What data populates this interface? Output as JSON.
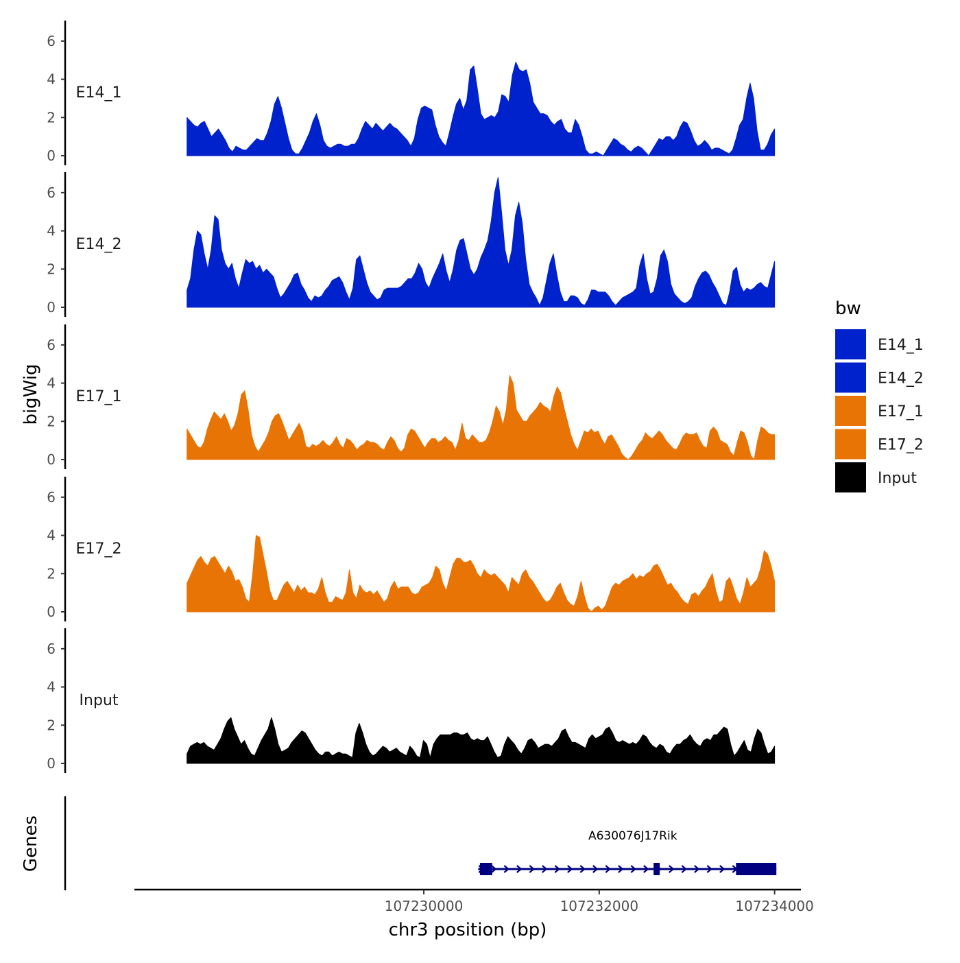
{
  "chart_data": {
    "type": "area",
    "title": "",
    "ylabel": "bigWig",
    "xlabel": "chr3 position (bp)",
    "gene_track_label": "Genes",
    "xlim": [
      107226700,
      107234300
    ],
    "ylim": [
      0,
      7
    ],
    "x_ticks": [
      107230000,
      107232000,
      107234000
    ],
    "x_tick_labels": [
      "107230000",
      "107232000",
      "107234000"
    ],
    "y_ticks": [
      0,
      2,
      4,
      6
    ],
    "y_tick_labels": [
      "0",
      "2",
      "4",
      "6"
    ],
    "x_start": 107227300,
    "x_end": 107234000,
    "legend": {
      "title": "bw",
      "entries": [
        {
          "label": "E14_1",
          "color": "#0022CC"
        },
        {
          "label": "E14_2",
          "color": "#0022CC"
        },
        {
          "label": "E17_1",
          "color": "#E87405"
        },
        {
          "label": "E17_2",
          "color": "#E87405"
        },
        {
          "label": "Input",
          "color": "#000000"
        }
      ]
    },
    "series": [
      {
        "name": "E14_1",
        "color": "#0022CC",
        "values": [
          2.0,
          1.8,
          1.6,
          1.5,
          1.7,
          1.8,
          1.4,
          1.0,
          1.2,
          1.4,
          1.1,
          0.8,
          0.4,
          0.2,
          0.5,
          0.4,
          0.3,
          0.3,
          0.5,
          0.7,
          0.9,
          0.8,
          0.8,
          1.2,
          1.8,
          2.7,
          3.1,
          2.5,
          1.7,
          0.9,
          0.3,
          0.1,
          0.1,
          0.4,
          0.8,
          1.2,
          1.8,
          2.2,
          1.6,
          0.8,
          0.5,
          0.4,
          0.5,
          0.6,
          0.6,
          0.5,
          0.5,
          0.6,
          0.6,
          0.9,
          1.4,
          1.8,
          1.6,
          1.4,
          1.7,
          1.5,
          1.3,
          1.5,
          1.7,
          1.5,
          1.4,
          1.2,
          1.0,
          0.8,
          0.5,
          0.9,
          1.9,
          2.5,
          2.6,
          2.5,
          2.4,
          1.6,
          1.0,
          0.7,
          0.5,
          1.2,
          2.0,
          2.7,
          3.0,
          2.4,
          2.9,
          4.5,
          4.7,
          3.5,
          2.2,
          1.9,
          2.0,
          2.1,
          2.0,
          2.3,
          3.2,
          3.1,
          2.8,
          4.2,
          4.9,
          4.5,
          4.4,
          4.5,
          3.8,
          2.8,
          2.5,
          2.2,
          2.2,
          2.1,
          1.8,
          1.6,
          1.8,
          1.9,
          1.4,
          1.2,
          1.2,
          1.9,
          1.6,
          1.0,
          0.3,
          0.1,
          0.1,
          0.2,
          0.1,
          0.0,
          0.3,
          0.6,
          0.9,
          0.8,
          0.6,
          0.5,
          0.3,
          0.2,
          0.4,
          0.5,
          0.4,
          0.2,
          0.0,
          0.3,
          0.6,
          0.9,
          0.8,
          1.0,
          1.0,
          0.8,
          1.0,
          1.5,
          1.8,
          1.7,
          1.3,
          0.8,
          0.5,
          0.6,
          0.8,
          0.6,
          0.3,
          0.4,
          0.4,
          0.3,
          0.2,
          0.1,
          0.3,
          0.9,
          1.6,
          1.9,
          3.0,
          3.8,
          3.0,
          1.3,
          0.3,
          0.3,
          0.6,
          1.1,
          1.4
        ]
      },
      {
        "name": "E14_2",
        "color": "#0022CC",
        "values": [
          0.9,
          1.5,
          3.0,
          4.0,
          3.8,
          2.8,
          2.0,
          3.0,
          4.8,
          4.6,
          3.0,
          2.3,
          2.0,
          2.3,
          1.5,
          1.0,
          1.8,
          2.5,
          2.3,
          2.4,
          2.0,
          2.2,
          1.8,
          2.0,
          1.8,
          1.6,
          1.0,
          0.5,
          0.7,
          1.0,
          1.3,
          1.7,
          1.8,
          1.2,
          0.9,
          0.5,
          0.3,
          0.6,
          0.5,
          0.6,
          0.9,
          1.1,
          1.4,
          1.5,
          1.6,
          1.3,
          0.8,
          0.4,
          1.0,
          2.5,
          2.7,
          2.0,
          1.3,
          0.8,
          0.6,
          0.4,
          0.5,
          0.9,
          1.0,
          1.0,
          1.0,
          1.0,
          1.1,
          1.3,
          1.5,
          1.5,
          1.8,
          2.3,
          2.0,
          1.3,
          1.0,
          1.5,
          1.9,
          2.3,
          2.8,
          1.9,
          1.3,
          2.0,
          3.0,
          3.5,
          3.6,
          2.8,
          2.0,
          1.7,
          2.0,
          2.6,
          3.0,
          3.5,
          4.5,
          6.0,
          6.8,
          5.0,
          3.0,
          2.2,
          3.0,
          4.8,
          5.5,
          4.4,
          2.5,
          1.2,
          0.8,
          0.5,
          0.1,
          0.5,
          1.4,
          2.3,
          2.8,
          1.7,
          0.8,
          0.3,
          0.3,
          0.6,
          0.6,
          0.5,
          0.2,
          0.1,
          0.4,
          0.9,
          0.9,
          0.8,
          0.8,
          0.8,
          0.6,
          0.3,
          0.1,
          0.3,
          0.5,
          0.6,
          0.7,
          0.8,
          1.0,
          2.2,
          2.8,
          1.5,
          0.7,
          0.8,
          1.5,
          2.7,
          3.0,
          2.4,
          1.2,
          0.7,
          0.5,
          0.3,
          0.2,
          0.3,
          0.5,
          1.1,
          1.5,
          1.8,
          1.9,
          1.7,
          1.3,
          1.0,
          0.6,
          0.2,
          0.1,
          0.8,
          1.9,
          2.1,
          1.2,
          0.8,
          1.0,
          0.9,
          1.0,
          1.2,
          1.3,
          1.1,
          1.0,
          1.7,
          2.4
        ]
      },
      {
        "name": "E17_1",
        "color": "#E87405",
        "values": [
          1.6,
          1.3,
          1.0,
          0.7,
          0.6,
          0.9,
          1.6,
          2.1,
          2.5,
          2.3,
          2.1,
          2.4,
          2.0,
          1.5,
          1.8,
          2.4,
          3.4,
          3.6,
          2.6,
          1.3,
          0.7,
          0.4,
          0.7,
          1.0,
          1.4,
          2.0,
          2.3,
          2.4,
          2.0,
          1.5,
          1.0,
          1.3,
          1.6,
          1.9,
          1.5,
          0.7,
          0.6,
          0.8,
          0.7,
          0.8,
          1.0,
          0.8,
          0.7,
          0.9,
          1.2,
          0.8,
          0.6,
          1.1,
          1.0,
          0.8,
          0.5,
          0.7,
          0.8,
          1.0,
          0.9,
          0.9,
          0.8,
          0.6,
          0.5,
          0.9,
          1.2,
          1.0,
          0.6,
          0.4,
          0.6,
          1.3,
          1.6,
          1.5,
          1.2,
          0.9,
          0.6,
          0.9,
          1.1,
          1.1,
          0.9,
          1.0,
          1.2,
          1.0,
          0.9,
          0.5,
          1.0,
          1.9,
          1.1,
          1.0,
          1.3,
          1.1,
          0.9,
          0.9,
          1.0,
          1.4,
          2.0,
          2.8,
          2.5,
          1.8,
          2.6,
          4.4,
          4.0,
          2.6,
          2.3,
          2.0,
          2.0,
          2.3,
          2.5,
          2.7,
          3.0,
          2.8,
          2.7,
          2.5,
          3.3,
          3.8,
          3.5,
          2.7,
          2.0,
          1.3,
          0.8,
          0.5,
          1.0,
          1.5,
          1.4,
          1.6,
          1.4,
          1.5,
          1.1,
          0.8,
          1.2,
          1.3,
          1.0,
          0.7,
          0.3,
          0.1,
          0.0,
          0.2,
          0.5,
          0.8,
          1.0,
          1.4,
          1.2,
          1.1,
          1.3,
          1.5,
          1.3,
          1.0,
          0.8,
          0.6,
          0.5,
          0.8,
          1.2,
          1.4,
          1.3,
          1.3,
          1.4,
          1.0,
          0.7,
          0.6,
          1.5,
          1.7,
          1.5,
          1.0,
          0.9,
          0.8,
          0.4,
          0.2,
          0.9,
          1.5,
          1.4,
          0.9,
          0.2,
          0.0,
          1.0,
          1.7,
          1.6,
          1.4,
          1.3,
          1.3
        ]
      },
      {
        "name": "E17_2",
        "color": "#E87405",
        "values": [
          1.5,
          1.9,
          2.3,
          2.7,
          2.9,
          2.6,
          2.4,
          2.8,
          2.9,
          2.6,
          2.3,
          2.0,
          2.4,
          2.1,
          1.6,
          1.7,
          1.3,
          0.7,
          0.5,
          2.0,
          4.0,
          3.9,
          3.0,
          2.1,
          1.1,
          0.6,
          0.6,
          1.0,
          1.4,
          1.6,
          1.3,
          1.0,
          1.4,
          1.1,
          1.3,
          1.0,
          1.0,
          0.9,
          1.2,
          1.8,
          1.0,
          0.5,
          0.5,
          0.8,
          0.7,
          0.6,
          1.0,
          2.2,
          1.0,
          0.7,
          1.4,
          1.1,
          1.0,
          1.1,
          0.9,
          1.1,
          0.8,
          0.5,
          0.7,
          1.3,
          1.6,
          1.2,
          1.3,
          1.3,
          1.3,
          1.0,
          0.9,
          1.0,
          1.3,
          1.4,
          1.5,
          1.8,
          2.4,
          2.2,
          1.5,
          1.1,
          1.8,
          2.5,
          2.8,
          2.8,
          2.6,
          2.6,
          2.7,
          2.4,
          2.0,
          1.8,
          2.2,
          2.0,
          1.9,
          2.0,
          1.8,
          1.6,
          1.4,
          1.0,
          1.8,
          1.6,
          1.4,
          2.0,
          2.2,
          1.8,
          1.6,
          1.3,
          1.0,
          0.7,
          0.5,
          0.6,
          0.9,
          1.3,
          1.5,
          1.0,
          0.6,
          0.4,
          0.3,
          0.8,
          1.6,
          0.8,
          0.2,
          0.0,
          0.2,
          0.3,
          0.1,
          0.3,
          0.8,
          1.3,
          1.5,
          1.4,
          1.6,
          1.7,
          1.8,
          2.0,
          1.7,
          1.9,
          1.8,
          2.0,
          2.1,
          2.4,
          2.5,
          2.2,
          1.8,
          1.4,
          1.5,
          1.2,
          1.0,
          0.7,
          0.5,
          0.4,
          0.9,
          1.0,
          0.8,
          1.1,
          1.3,
          1.7,
          2.0,
          1.1,
          0.5,
          0.6,
          1.6,
          1.8,
          1.3,
          0.7,
          0.4,
          1.0,
          1.8,
          1.3,
          1.5,
          1.7,
          2.3,
          3.2,
          3.0,
          2.4,
          1.6
        ]
      },
      {
        "name": "Input",
        "color": "#000000",
        "values": [
          0.5,
          0.9,
          1.0,
          1.1,
          1.0,
          1.1,
          0.9,
          0.8,
          0.7,
          1.0,
          1.3,
          1.8,
          2.2,
          2.4,
          1.8,
          1.4,
          1.0,
          1.2,
          0.8,
          0.5,
          0.4,
          0.8,
          1.2,
          1.5,
          1.8,
          2.4,
          1.8,
          1.0,
          0.6,
          0.7,
          0.8,
          1.1,
          1.3,
          1.5,
          1.7,
          1.6,
          1.3,
          1.0,
          0.7,
          0.5,
          0.4,
          0.6,
          0.6,
          0.4,
          0.5,
          0.6,
          0.5,
          0.5,
          0.4,
          0.3,
          1.6,
          2.1,
          1.6,
          1.0,
          0.6,
          0.4,
          0.5,
          0.7,
          0.9,
          0.8,
          0.6,
          0.7,
          0.8,
          0.6,
          0.5,
          0.4,
          0.9,
          0.7,
          0.4,
          0.3,
          1.2,
          1.0,
          0.3,
          1.0,
          1.3,
          1.5,
          1.5,
          1.5,
          1.5,
          1.6,
          1.6,
          1.5,
          1.5,
          1.6,
          1.3,
          1.2,
          1.3,
          1.2,
          1.2,
          1.4,
          1.0,
          0.6,
          0.3,
          0.4,
          1.0,
          1.4,
          1.2,
          1.0,
          0.7,
          0.5,
          0.8,
          1.2,
          1.3,
          1.1,
          0.8,
          0.9,
          1.0,
          1.0,
          0.9,
          1.1,
          1.3,
          1.7,
          1.8,
          1.4,
          1.1,
          1.1,
          1.0,
          0.9,
          0.8,
          1.3,
          1.5,
          1.3,
          1.4,
          1.5,
          1.8,
          1.9,
          1.6,
          1.2,
          1.1,
          1.2,
          1.1,
          1.0,
          1.1,
          1.0,
          1.2,
          1.5,
          1.4,
          1.1,
          0.9,
          0.8,
          1.0,
          0.9,
          0.6,
          0.5,
          0.8,
          1.0,
          1.0,
          1.2,
          1.3,
          1.5,
          1.2,
          1.0,
          0.9,
          1.2,
          1.3,
          1.2,
          1.5,
          1.5,
          1.7,
          1.9,
          1.8,
          1.0,
          0.4,
          0.6,
          0.9,
          1.2,
          0.7,
          0.6,
          1.3,
          1.8,
          1.6,
          1.0,
          0.5,
          0.6,
          0.9
        ]
      }
    ],
    "gene_track": {
      "gene_name": "A630076J17Rik",
      "strand": "+",
      "color": "#000080",
      "start": 107230620,
      "end": 107234020,
      "exons": [
        {
          "start": 107230640,
          "end": 107230780
        },
        {
          "start": 107232620,
          "end": 107232690
        },
        {
          "start": 107233560,
          "end": 107234020
        }
      ]
    }
  }
}
